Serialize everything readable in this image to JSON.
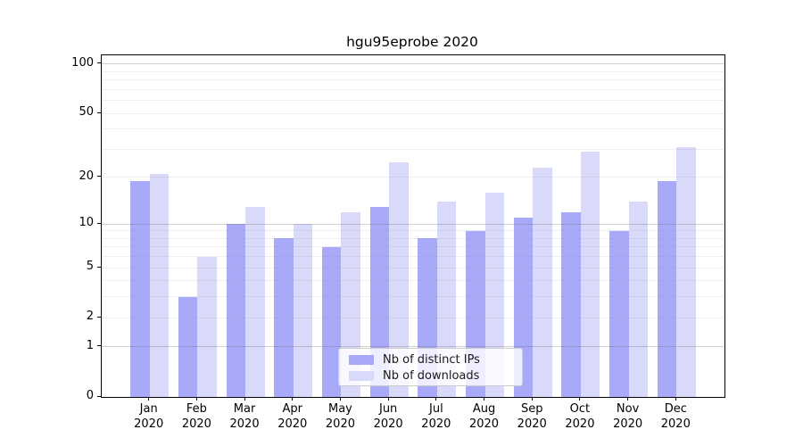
{
  "chart_data": {
    "type": "bar",
    "title": "hgu95eprobe 2020",
    "x": {
      "months": [
        "Jan",
        "Feb",
        "Mar",
        "Apr",
        "May",
        "Jun",
        "Jul",
        "Aug",
        "Sep",
        "Oct",
        "Nov",
        "Dec"
      ],
      "year": "2020"
    },
    "series": [
      {
        "name": "Nb of distinct IPs",
        "color": "#a9a9fa",
        "values": [
          19,
          3,
          10,
          8,
          7,
          13,
          8,
          9,
          11,
          12,
          9,
          19
        ]
      },
      {
        "name": "Nb of downloads",
        "color": "#d9d9f9",
        "values": [
          21,
          6,
          13,
          10,
          12,
          25,
          14,
          16,
          23,
          29,
          14,
          31
        ]
      }
    ],
    "yscale": "log10(1+v)",
    "ylim": [
      0,
      112
    ],
    "yticks": [
      0,
      1,
      2,
      5,
      10,
      20,
      50,
      100
    ],
    "grid": {
      "major": [
        1,
        10,
        100
      ],
      "minor": [
        2,
        3,
        4,
        5,
        6,
        7,
        8,
        9,
        20,
        30,
        40,
        50,
        60,
        70,
        80,
        90
      ]
    },
    "legend": {
      "position": "lower center",
      "items": [
        "Nb of distinct IPs",
        "Nb of downloads"
      ]
    }
  }
}
